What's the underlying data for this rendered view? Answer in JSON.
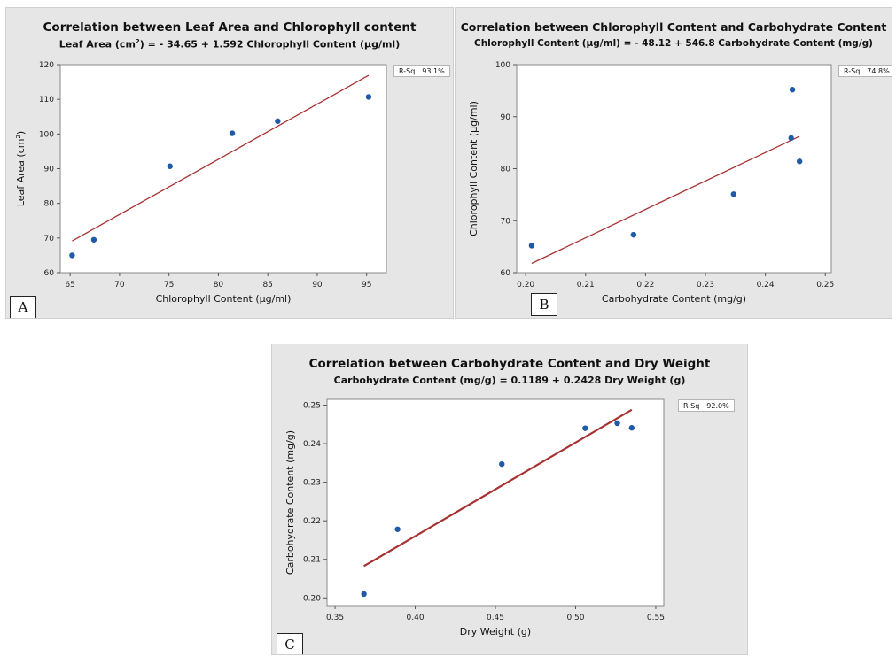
{
  "chart_data": [
    {
      "type": "scatter",
      "panel_label": "A",
      "title": "Correlation between Leaf Area and Chlorophyll content",
      "subtitle_parts": [
        "Leaf Area (cm",
        "2",
        ") = - 34.65 + 1.592 Chlorophyll Content (µg/ml)"
      ],
      "xlabel": "Chlorophyll Content (µg/ml)",
      "ylabel_parts": [
        "Leaf Area (cm",
        "2",
        ")"
      ],
      "xlim": [
        64,
        97
      ],
      "ylim": [
        60,
        120
      ],
      "xticks": [
        65,
        70,
        75,
        80,
        85,
        90,
        95
      ],
      "yticks": [
        60,
        70,
        80,
        90,
        100,
        110,
        120
      ],
      "x": [
        65.2,
        67.4,
        75.1,
        81.4,
        86.0,
        95.2
      ],
      "y": [
        65.0,
        69.5,
        90.7,
        100.2,
        103.7,
        110.7
      ],
      "fit": {
        "intercept": -34.65,
        "slope": 1.592,
        "x_range": [
          65.2,
          95.2
        ]
      },
      "rsq_label": "R-Sq",
      "rsq_value": "93.1%",
      "point_color": "#1f5aa6",
      "line_color": "#a83232"
    },
    {
      "type": "scatter",
      "panel_label": "B",
      "title": "Correlation between Chlorophyll Content and Carbohydrate Content",
      "subtitle_parts": [
        "Chlorophyll Content (µg/ml) = - 48.12 + 546.8 Carbohydrate Content (mg/g)",
        "",
        ""
      ],
      "xlabel": "Carbohydrate Content (mg/g)",
      "ylabel_parts": [
        "Chlorophyll Content (µg/ml)",
        "",
        ""
      ],
      "xlim": [
        0.1985,
        0.251
      ],
      "ylim": [
        60,
        100
      ],
      "xticks": [
        0.2,
        0.21,
        0.22,
        0.23,
        0.24,
        0.25
      ],
      "xtick_labels": [
        "0.20",
        "0.21",
        "0.22",
        "0.23",
        "0.24",
        "0.25"
      ],
      "yticks": [
        60,
        70,
        80,
        90,
        100
      ],
      "x": [
        0.201,
        0.218,
        0.2347,
        0.2443,
        0.2445,
        0.2457
      ],
      "y": [
        65.2,
        67.3,
        75.1,
        85.9,
        95.2,
        81.4
      ],
      "fit": {
        "intercept": -48.12,
        "slope": 546.8,
        "x_range": [
          0.201,
          0.2457
        ]
      },
      "rsq_label": "R-Sq",
      "rsq_value": "74.8%",
      "point_color": "#1f5aa6",
      "line_color": "#a83232"
    },
    {
      "type": "scatter",
      "panel_label": "C",
      "title": "Correlation between Carbohydrate Content and Dry Weight",
      "subtitle_parts": [
        "Carbohydrate Content (mg/g) = 0.1189 + 0.2428 Dry Weight (g)",
        "",
        ""
      ],
      "xlabel": "Dry Weight (g)",
      "ylabel_parts": [
        "Carbohydrate Content (mg/g)",
        "",
        ""
      ],
      "xlim": [
        0.345,
        0.555
      ],
      "ylim": [
        0.198,
        0.2515
      ],
      "xticks": [
        0.35,
        0.4,
        0.45,
        0.5,
        0.55
      ],
      "xtick_labels": [
        "0.35",
        "0.40",
        "0.45",
        "0.50",
        "0.55"
      ],
      "yticks": [
        0.2,
        0.21,
        0.22,
        0.23,
        0.24,
        0.25
      ],
      "ytick_labels": [
        "0.20",
        "0.21",
        "0.22",
        "0.23",
        "0.24",
        "0.25"
      ],
      "x": [
        0.368,
        0.389,
        0.454,
        0.506,
        0.526,
        0.535
      ],
      "y": [
        0.201,
        0.2178,
        0.2347,
        0.244,
        0.2453,
        0.2441
      ],
      "fit": {
        "intercept": 0.1189,
        "slope": 0.2428,
        "x_range": [
          0.368,
          0.535
        ]
      },
      "rsq_label": "R-Sq",
      "rsq_value": "92.0%",
      "point_color": "#1f5aa6",
      "line_color": "#a83232"
    }
  ]
}
